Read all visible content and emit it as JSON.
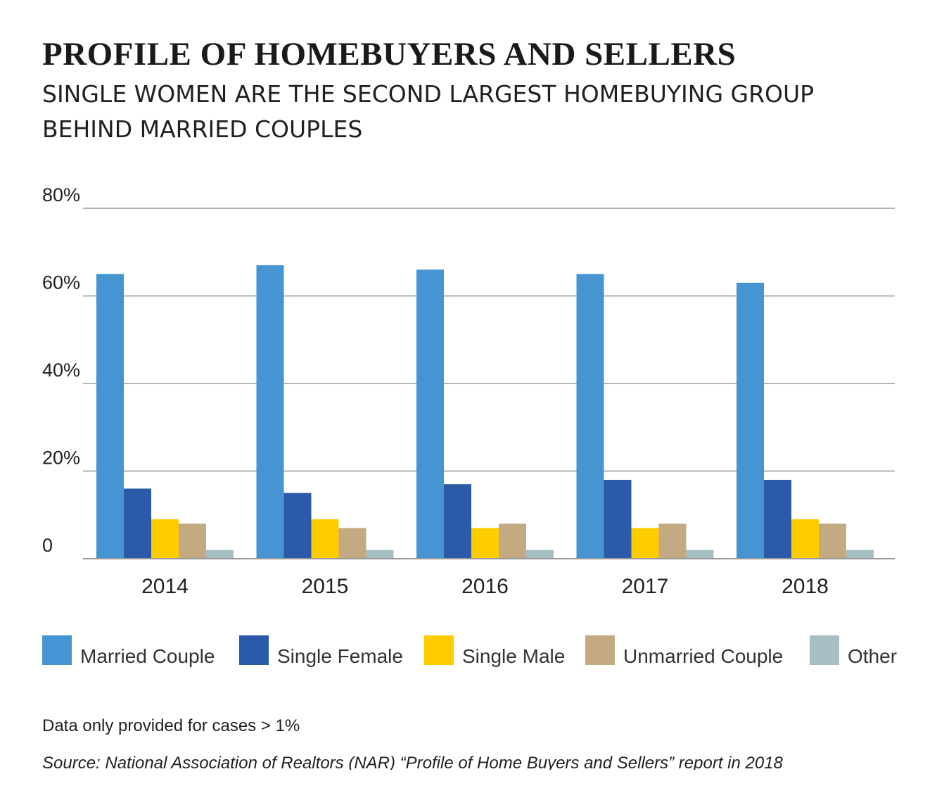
{
  "chart_data": {
    "type": "bar",
    "title": "PROFILE OF HOMEBUYERS AND SELLERS",
    "subtitle": "SINGLE WOMEN ARE THE SECOND LARGEST HOMEBUYING GROUP BEHIND MARRIED COUPLES",
    "categories": [
      "2014",
      "2015",
      "2016",
      "2017",
      "2018"
    ],
    "series": [
      {
        "name": "Married Couple",
        "color": "#4595d3",
        "values": [
          65,
          67,
          66,
          65,
          63
        ]
      },
      {
        "name": "Single Female",
        "color": "#2b5aa8",
        "values": [
          16,
          15,
          17,
          18,
          18
        ]
      },
      {
        "name": "Single Male",
        "color": "#ffcc00",
        "values": [
          9,
          9,
          7,
          7,
          9
        ]
      },
      {
        "name": "Unmarried Couple",
        "color": "#c4aa82",
        "values": [
          8,
          7,
          8,
          8,
          8
        ]
      },
      {
        "name": "Other",
        "color": "#a7bec2",
        "values": [
          2,
          2,
          2,
          2,
          2
        ]
      }
    ],
    "ylim": [
      0,
      80
    ],
    "yticks": [
      0,
      20,
      40,
      60,
      80
    ],
    "ytick_labels": [
      "0",
      "20%",
      "40%",
      "60%",
      "80%"
    ],
    "xlabel": "",
    "ylabel": "",
    "grid": true,
    "legend_position": "bottom"
  },
  "note": "Data only provided for cases > 1%",
  "source": "Source: National Association of Realtors (NAR) “Profile of Home Buyers and Sellers” report in 2018",
  "colors": {
    "grid": "#b3b3b3",
    "axis": "#999999",
    "text": "#231f20"
  }
}
